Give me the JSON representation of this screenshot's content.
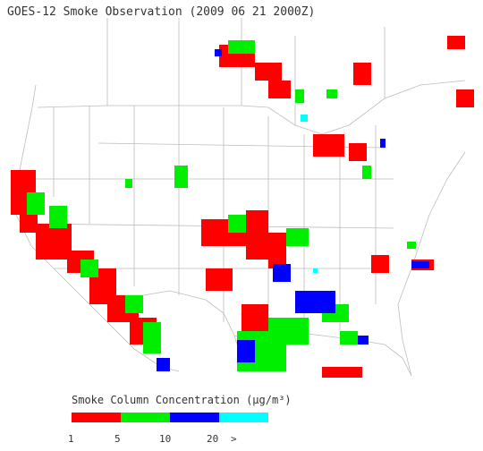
{
  "title": "GOES-12 Smoke Observation (2009 06 21  2000Z)",
  "legend": {
    "label": "Smoke Column Concentration",
    "unit_html": "(μg/m³)",
    "bins": [
      {
        "from": "1",
        "to": "5",
        "color": "#ff0000"
      },
      {
        "from": "5",
        "to": "10",
        "color": "#00ee00"
      },
      {
        "from": "10",
        "to": "20",
        "color": "#0000ff"
      },
      {
        "from": "20",
        "to": ">",
        "color": "#00ffff"
      }
    ],
    "tick_labels": [
      "1",
      "5",
      "10",
      "20",
      ">"
    ]
  },
  "map": {
    "region": "Continental United States and southern Canada",
    "background_color": "#ffffff",
    "boundary_color": "#bdbdbd"
  }
}
